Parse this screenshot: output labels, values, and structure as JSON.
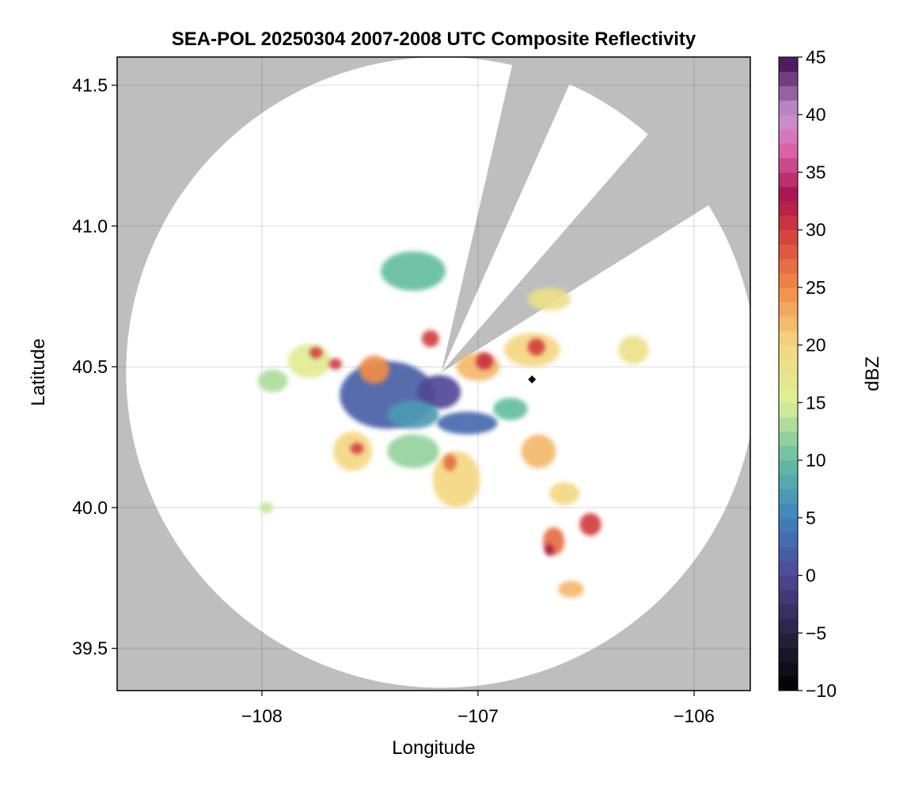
{
  "chart_data": {
    "type": "heatmap",
    "title": "SEA-POL 20250304 2007-2008 UTC Composite Reflectivity",
    "xlabel": "Longitude",
    "ylabel": "Latitude",
    "xlim": [
      -108.67,
      -105.74
    ],
    "ylim": [
      39.35,
      41.6
    ],
    "xticks": [
      -108,
      -107,
      -106
    ],
    "xtick_labels": [
      "−108",
      "−107",
      "−106"
    ],
    "yticks": [
      39.5,
      40.0,
      40.5,
      41.0,
      41.5
    ],
    "ytick_labels": [
      "39.5",
      "40.0",
      "40.5",
      "41.0",
      "41.5"
    ],
    "grid": true,
    "background_color": "#bebebe",
    "radar": {
      "center_lon": -107.17,
      "center_lat": 40.48,
      "range_deg_lat": 1.12,
      "blocked_sector_1_deg": [
        13,
        24
      ],
      "blocked_sector_2_deg": [
        41,
        58
      ]
    },
    "colorbar": {
      "label": "dBZ",
      "min": -10,
      "max": 45,
      "ticks": [
        -10,
        -5,
        0,
        5,
        10,
        15,
        20,
        25,
        30,
        35,
        40,
        45
      ],
      "tick_labels": [
        "−10",
        "−5",
        "0",
        "5",
        "10",
        "15",
        "20",
        "25",
        "30",
        "35",
        "40",
        "45"
      ],
      "colormap": "spectral-like"
    },
    "echoes": [
      {
        "lon": -107.3,
        "lat": 40.84,
        "rx": 0.15,
        "ry": 0.07,
        "dbz": 10
      },
      {
        "lon": -107.22,
        "lat": 40.6,
        "rx": 0.04,
        "ry": 0.03,
        "dbz": 30
      },
      {
        "lon": -107.42,
        "lat": 40.4,
        "rx": 0.22,
        "ry": 0.12,
        "dbz": 2
      },
      {
        "lon": -107.48,
        "lat": 40.49,
        "rx": 0.07,
        "ry": 0.05,
        "dbz": 25
      },
      {
        "lon": -107.18,
        "lat": 40.41,
        "rx": 0.1,
        "ry": 0.06,
        "dbz": 0
      },
      {
        "lon": -107.05,
        "lat": 40.3,
        "rx": 0.14,
        "ry": 0.04,
        "dbz": 3
      },
      {
        "lon": -107.0,
        "lat": 40.5,
        "rx": 0.1,
        "ry": 0.05,
        "dbz": 22
      },
      {
        "lon": -106.97,
        "lat": 40.52,
        "rx": 0.04,
        "ry": 0.03,
        "dbz": 31
      },
      {
        "lon": -106.75,
        "lat": 40.56,
        "rx": 0.13,
        "ry": 0.06,
        "dbz": 20
      },
      {
        "lon": -106.73,
        "lat": 40.57,
        "rx": 0.04,
        "ry": 0.03,
        "dbz": 30
      },
      {
        "lon": -106.67,
        "lat": 40.74,
        "rx": 0.1,
        "ry": 0.04,
        "dbz": 18
      },
      {
        "lon": -106.28,
        "lat": 40.56,
        "rx": 0.07,
        "ry": 0.05,
        "dbz": 18
      },
      {
        "lon": -107.78,
        "lat": 40.52,
        "rx": 0.1,
        "ry": 0.06,
        "dbz": 16
      },
      {
        "lon": -107.75,
        "lat": 40.55,
        "rx": 0.03,
        "ry": 0.02,
        "dbz": 30
      },
      {
        "lon": -107.66,
        "lat": 40.51,
        "rx": 0.03,
        "ry": 0.02,
        "dbz": 30
      },
      {
        "lon": -107.58,
        "lat": 40.2,
        "rx": 0.09,
        "ry": 0.07,
        "dbz": 20
      },
      {
        "lon": -107.56,
        "lat": 40.21,
        "rx": 0.03,
        "ry": 0.02,
        "dbz": 30
      },
      {
        "lon": -107.3,
        "lat": 40.2,
        "rx": 0.12,
        "ry": 0.06,
        "dbz": 12
      },
      {
        "lon": -107.1,
        "lat": 40.1,
        "rx": 0.11,
        "ry": 0.1,
        "dbz": 20
      },
      {
        "lon": -107.13,
        "lat": 40.16,
        "rx": 0.03,
        "ry": 0.03,
        "dbz": 27
      },
      {
        "lon": -106.72,
        "lat": 40.2,
        "rx": 0.08,
        "ry": 0.06,
        "dbz": 22
      },
      {
        "lon": -106.85,
        "lat": 40.35,
        "rx": 0.08,
        "ry": 0.04,
        "dbz": 10
      },
      {
        "lon": -106.6,
        "lat": 40.05,
        "rx": 0.07,
        "ry": 0.04,
        "dbz": 20
      },
      {
        "lon": -106.48,
        "lat": 39.94,
        "rx": 0.05,
        "ry": 0.04,
        "dbz": 30
      },
      {
        "lon": -106.65,
        "lat": 39.88,
        "rx": 0.05,
        "ry": 0.05,
        "dbz": 27
      },
      {
        "lon": -106.67,
        "lat": 39.85,
        "rx": 0.02,
        "ry": 0.02,
        "dbz": 33
      },
      {
        "lon": -106.57,
        "lat": 39.71,
        "rx": 0.06,
        "ry": 0.03,
        "dbz": 22
      },
      {
        "lon": -107.95,
        "lat": 40.45,
        "rx": 0.07,
        "ry": 0.04,
        "dbz": 13
      },
      {
        "lon": -107.98,
        "lat": 40.0,
        "rx": 0.03,
        "ry": 0.02,
        "dbz": 14
      },
      {
        "lon": -107.3,
        "lat": 40.33,
        "rx": 0.12,
        "ry": 0.05,
        "dbz": 7
      }
    ],
    "radar_marker": {
      "lon": -106.75,
      "lat": 40.455,
      "shape": "diamond"
    }
  }
}
